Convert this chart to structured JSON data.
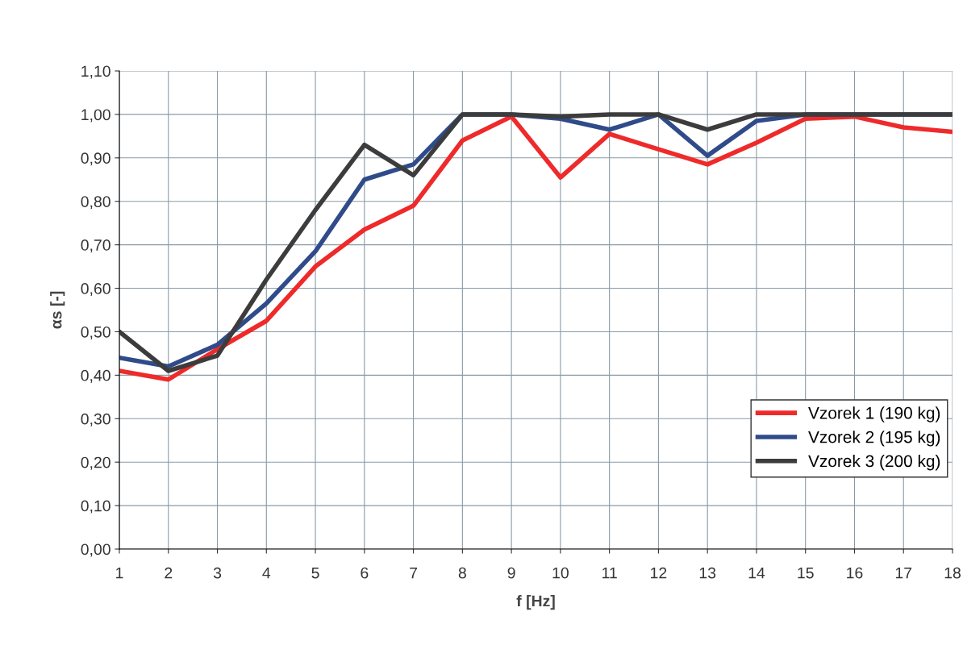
{
  "chart_data": {
    "type": "line",
    "xlabel": "f [Hz]",
    "ylabel": "αs [-]",
    "x": [
      1,
      2,
      3,
      4,
      5,
      6,
      7,
      8,
      9,
      10,
      11,
      12,
      13,
      14,
      15,
      16,
      17,
      18
    ],
    "series": [
      {
        "name": "Vzorek 1 (190 kg)",
        "color": "#ee2a2a",
        "values": [
          0.41,
          0.39,
          0.46,
          0.525,
          0.65,
          0.735,
          0.79,
          0.94,
          0.995,
          0.855,
          0.955,
          0.92,
          0.885,
          0.935,
          0.99,
          0.995,
          0.97,
          0.96
        ]
      },
      {
        "name": "Vzorek 2 (195 kg)",
        "color": "#2f4b8a",
        "values": [
          0.44,
          0.42,
          0.47,
          0.565,
          0.685,
          0.85,
          0.885,
          1.0,
          1.0,
          0.99,
          0.965,
          1.0,
          0.905,
          0.985,
          1.0,
          1.0,
          1.0,
          1.0
        ]
      },
      {
        "name": "Vzorek 3 (200 kg)",
        "color": "#3c3c3c",
        "values": [
          0.5,
          0.41,
          0.445,
          0.62,
          0.78,
          0.93,
          0.86,
          1.0,
          1.0,
          0.995,
          1.0,
          1.0,
          0.965,
          1.0,
          1.0,
          1.0,
          1.0,
          1.0
        ]
      }
    ],
    "xlim": [
      1,
      18
    ],
    "xticks": [
      1,
      2,
      3,
      4,
      5,
      6,
      7,
      8,
      9,
      10,
      11,
      12,
      13,
      14,
      15,
      16,
      17,
      18
    ],
    "ylim": [
      0,
      1.1
    ],
    "yticks": [
      {
        "value": 0,
        "label": "0,00"
      },
      {
        "value": 0.1,
        "label": "0,10"
      },
      {
        "value": 0.2,
        "label": "0,20"
      },
      {
        "value": 0.3,
        "label": "0,30"
      },
      {
        "value": 0.4,
        "label": "0,40"
      },
      {
        "value": 0.5,
        "label": "0,50"
      },
      {
        "value": 0.6,
        "label": "0,60"
      },
      {
        "value": 0.7,
        "label": "0,70"
      },
      {
        "value": 0.8,
        "label": "0,80"
      },
      {
        "value": 0.9,
        "label": "0,90"
      },
      {
        "value": 1.0,
        "label": "1,00"
      },
      {
        "value": 1.1,
        "label": "1,10"
      }
    ],
    "grid": true,
    "legend": "bottom right",
    "marker": "none",
    "line_style": "solid"
  }
}
